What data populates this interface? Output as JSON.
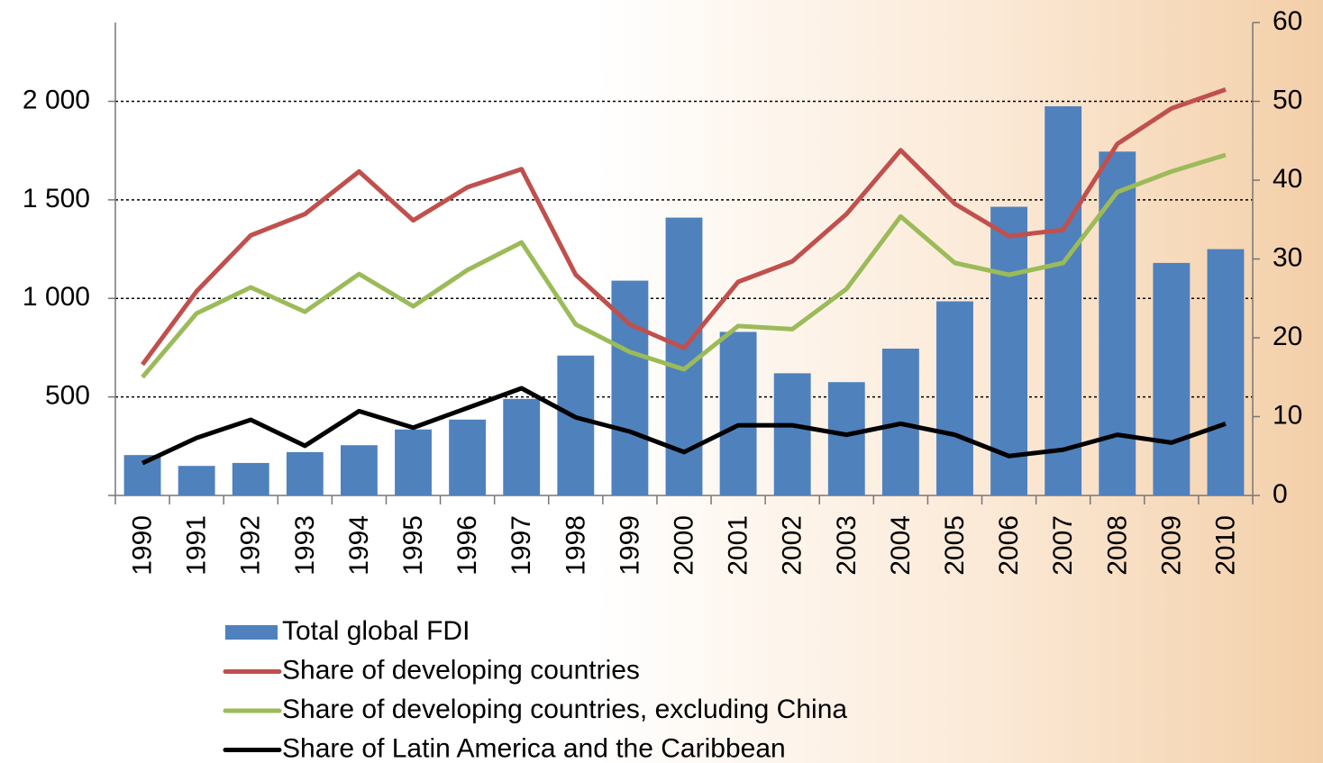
{
  "chart_data": {
    "type": "bar-line",
    "categories": [
      "1990",
      "1991",
      "1992",
      "1993",
      "1994",
      "1995",
      "1996",
      "1997",
      "1998",
      "1999",
      "2000",
      "2001",
      "2002",
      "2003",
      "2004",
      "2005",
      "2006",
      "2007",
      "2008",
      "2009",
      "2010"
    ],
    "series": [
      {
        "name": "Total global FDI",
        "type": "bar",
        "color": "#4f81bd",
        "values": [
          205,
          150,
          165,
          220,
          255,
          335,
          385,
          490,
          710,
          1090,
          1410,
          830,
          620,
          575,
          745,
          985,
          1465,
          1975,
          1745,
          1180,
          1250
        ]
      },
      {
        "name": "Share of developing countries",
        "type": "line",
        "axis": "y2",
        "color": "#c0504d",
        "values": [
          16.6,
          25.9,
          33,
          35.7,
          41.1,
          34.9,
          39.1,
          41.4,
          28,
          21.7,
          18.7,
          27.1,
          29.7,
          35.7,
          43.8,
          37,
          32.9,
          33.7,
          44.6,
          49.1,
          51.5
        ]
      },
      {
        "name": "Share of developing countries, excluding China",
        "type": "line",
        "axis": "y2",
        "color": "#9bbb59",
        "values": [
          15,
          23.1,
          26.4,
          23.3,
          28.1,
          24,
          28.6,
          32.1,
          21.7,
          18.2,
          16,
          21.5,
          21.1,
          26.2,
          35.4,
          29.5,
          28,
          29.5,
          38.5,
          41.1,
          43.2
        ]
      },
      {
        "name": "Share of Latin America and the Caribbean",
        "type": "line",
        "axis": "y2",
        "color": "#000000",
        "values": [
          4.1,
          7.3,
          9.6,
          6.3,
          10.7,
          8.6,
          11.1,
          13.6,
          9.9,
          8.1,
          5.5,
          8.9,
          8.9,
          7.7,
          9.1,
          7.7,
          5,
          5.8,
          7.7,
          6.7,
          9.1
        ]
      }
    ],
    "ylim": [
      0,
      2400
    ],
    "yticks": [
      500,
      {
        "value": 1000,
        "label": "1 000"
      },
      {
        "value": 1500,
        "label": "1 500"
      },
      {
        "value": 2000,
        "label": "2 000"
      }
    ],
    "y2lim": [
      0,
      60
    ],
    "y2ticks": [
      0,
      10,
      20,
      30,
      40,
      50,
      60
    ],
    "grid": true
  }
}
